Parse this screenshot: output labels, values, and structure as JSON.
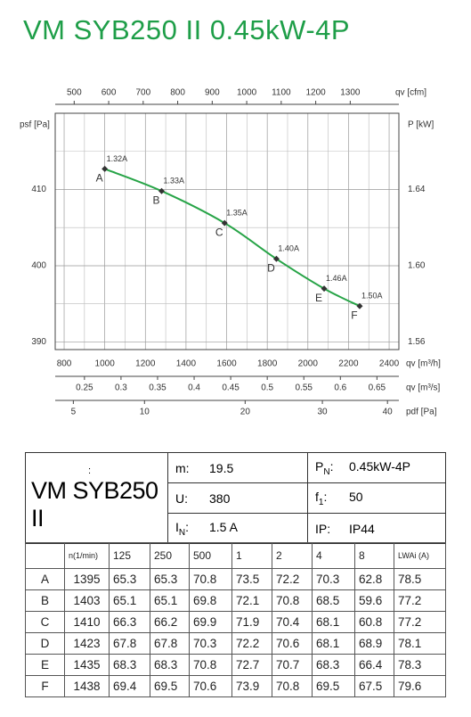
{
  "title": "VM SYB250 II 0.45kW-4P",
  "chart_data": {
    "type": "line",
    "x": [
      1000,
      1280,
      1590,
      1845,
      2080,
      2255
    ],
    "xlim": [
      756,
      2448
    ],
    "xticks": [
      800,
      1000,
      1200,
      1400,
      1600,
      1800,
      2000,
      2200,
      2400
    ],
    "minor_xticks": [
      900,
      1100,
      1300,
      1500,
      1700,
      1900,
      2100,
      2300
    ],
    "xlabel": "qv [m³/h]",
    "ylabel": "psf [Pa]",
    "ylim": [
      389,
      420
    ],
    "yticks": [
      390,
      400,
      410
    ],
    "minor_yticks": [
      395,
      405,
      415
    ],
    "y2label": "P [kW]",
    "y2lim": [
      1.556,
      1.68
    ],
    "y2ticks": [
      1.56,
      {
        "value": 1.6,
        "label": "1.60"
      },
      1.64
    ],
    "grid": true,
    "series": [
      {
        "color": "#27a447",
        "values": [
          412.7,
          409.8,
          405.6,
          400.9,
          397.0,
          394.7
        ],
        "point_labels": [
          "A",
          "B",
          "C",
          "D",
          "E",
          "F"
        ],
        "current_labels": [
          "1.32A",
          "1.33A",
          "1.35A",
          "1.40A",
          "1.46A",
          "1.50A"
        ]
      }
    ],
    "top_axis": {
      "label": "qv [cfm]",
      "lim": [
        445,
        1441
      ],
      "ticks": [
        500,
        600,
        700,
        800,
        900,
        1000,
        1100,
        1200,
        1300
      ]
    },
    "extra_axes": [
      {
        "label": "qv [m³/s]",
        "scale": "linear",
        "lim": [
          0.21,
          0.68
        ],
        "ticks": [
          0.25,
          0.3,
          0.35,
          0.4,
          0.45,
          0.5,
          0.55,
          0.6,
          0.65
        ]
      },
      {
        "label": "pdf [Pa]",
        "scale": "sqrt",
        "lim": [
          4.0,
          41.9
        ],
        "ticks": [
          5,
          10,
          20,
          30,
          40
        ]
      }
    ]
  },
  "table": {
    "model_note": ":",
    "model": "VM SYB250 II",
    "specs": [
      [
        {
          "sym": "m",
          "sub": "",
          "value": "19.5"
        },
        {
          "sym": "P",
          "sub": "N",
          "value": "0.45kW-4P"
        }
      ],
      [
        {
          "sym": "U",
          "sub": "",
          "value": "380"
        },
        {
          "sym": "f",
          "sub": "1",
          "value": "50"
        }
      ],
      [
        {
          "sym": "I",
          "sub": "N",
          "value": "1.5  A"
        },
        {
          "sym": "IP",
          "sub": "",
          "value": "IP44"
        }
      ]
    ],
    "columns": [
      "n(1/min)",
      "125",
      "250",
      "500",
      "1",
      "2",
      "4",
      "8",
      "LWAi (A)"
    ],
    "rows": [
      [
        "A",
        1395,
        65.3,
        65.3,
        70.8,
        73.5,
        72.2,
        70.3,
        62.8,
        78.5
      ],
      [
        "B",
        1403,
        65.1,
        65.1,
        69.8,
        72.1,
        70.8,
        68.5,
        59.6,
        77.2
      ],
      [
        "C",
        1410,
        66.3,
        66.2,
        69.9,
        71.9,
        70.4,
        68.1,
        60.8,
        77.2
      ],
      [
        "D",
        1423,
        67.8,
        67.8,
        70.3,
        72.2,
        70.6,
        68.1,
        68.9,
        78.1
      ],
      [
        "E",
        1435,
        68.3,
        68.3,
        70.8,
        72.7,
        70.7,
        68.3,
        66.4,
        78.3
      ],
      [
        "F",
        1438,
        69.4,
        69.5,
        70.6,
        73.9,
        70.8,
        69.5,
        67.5,
        79.6
      ]
    ]
  }
}
